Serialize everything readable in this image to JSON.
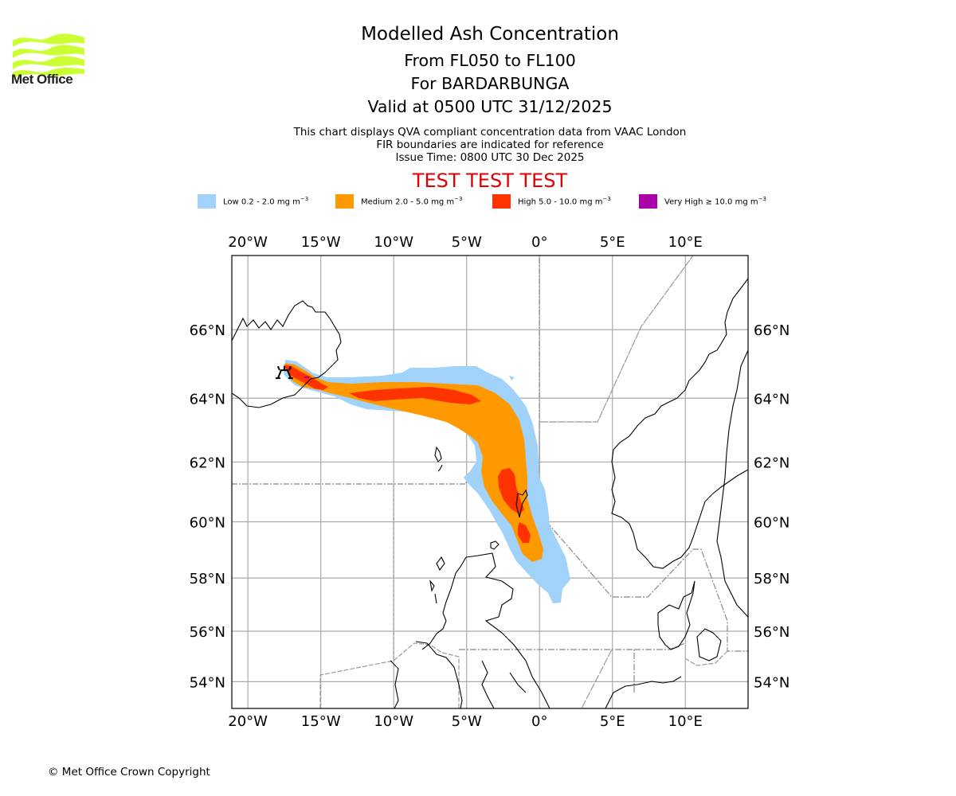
{
  "logo": {
    "text": "Met Office",
    "icon": "met-office-waves-logo",
    "color": "#ccff33"
  },
  "header": {
    "title": "Modelled Ash Concentration",
    "level_range": "From FL050 to FL100",
    "volcano": "For BARDARBUNGA",
    "valid_time": "Valid at 0500 UTC 31/12/2025"
  },
  "description": {
    "line1": "This chart displays QVA compliant concentration data from VAAC London",
    "line2": "FIR boundaries are indicated for reference",
    "issue_time": "Issue Time: 0800 UTC 30 Dec 2025"
  },
  "test_banner": {
    "text": "TEST TEST TEST",
    "color": "#e00000"
  },
  "legend": [
    {
      "label": "Low 0.2 - 2.0 mg m",
      "sup": "−3",
      "color": "#a0d2fa"
    },
    {
      "label": "Medium 2.0 - 5.0 mg m",
      "sup": "−3",
      "color": "#ff9900"
    },
    {
      "label": "High 5.0 - 10.0 mg m",
      "sup": "−3",
      "color": "#ff3300"
    },
    {
      "label": "Very High  ≥  10.0 mg m",
      "sup": "−3",
      "color": "#aa00aa"
    }
  ],
  "map": {
    "lon_range": [
      -21.1,
      14.3
    ],
    "lat_range": [
      52.9,
      68.0
    ],
    "lon_ticks": [
      {
        "value": -20,
        "label": "20°W"
      },
      {
        "value": -15,
        "label": "15°W"
      },
      {
        "value": -10,
        "label": "10°W"
      },
      {
        "value": -5,
        "label": "5°W"
      },
      {
        "value": 0,
        "label": "0°"
      },
      {
        "value": 5,
        "label": "5°E"
      },
      {
        "value": 10,
        "label": "10°E"
      }
    ],
    "lat_ticks": [
      {
        "value": 66,
        "label": "66°N"
      },
      {
        "value": 64,
        "label": "64°N"
      },
      {
        "value": 62,
        "label": "62°N"
      },
      {
        "value": 60,
        "label": "60°N"
      },
      {
        "value": 58,
        "label": "58°N"
      },
      {
        "value": 56,
        "label": "56°N"
      },
      {
        "value": 54,
        "label": "54°N"
      }
    ],
    "grid": true,
    "volcano_marker": {
      "name": "Bardarbunga",
      "lon": -17.5,
      "lat": 64.6
    }
  },
  "footer": {
    "copyright": "© Met Office Crown Copyright"
  }
}
